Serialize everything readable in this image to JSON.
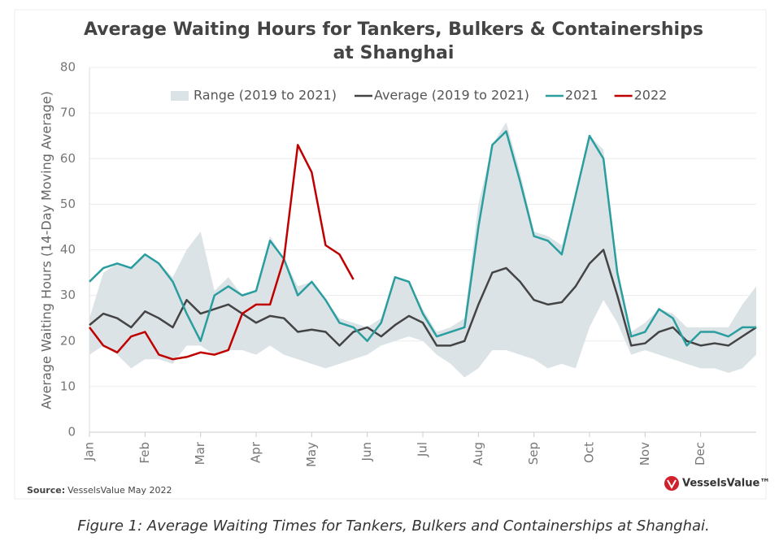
{
  "chart_data": {
    "type": "line",
    "title": [
      "Average Waiting Hours for Tankers, Bulkers & Containerships",
      "at Shanghai"
    ],
    "ylabel": "Average Waiting Hours (14-Day Moving Average)",
    "source_label": "Source:",
    "source": "VesselsValue May 2022",
    "logo": "VesselsValue™",
    "categories": [
      "Jan",
      null,
      null,
      null,
      "Feb",
      null,
      null,
      null,
      "Mar",
      null,
      null,
      null,
      "Apr",
      null,
      null,
      null,
      "May",
      null,
      null,
      null,
      "Jun",
      null,
      null,
      null,
      "Jul",
      null,
      null,
      null,
      "Aug",
      null,
      null,
      null,
      "Sep",
      null,
      null,
      null,
      "Oct",
      null,
      null,
      null,
      "Nov",
      null,
      null,
      null,
      "Dec",
      null,
      null,
      null,
      null
    ],
    "ylim": [
      0,
      80
    ],
    "yticks": [
      0,
      10,
      20,
      30,
      40,
      50,
      60,
      70,
      80
    ],
    "grid": true,
    "range": {
      "name": "Range (2019 to 2021)",
      "color": "#dce3e6",
      "upper": [
        25,
        35,
        37,
        36,
        39,
        37,
        34,
        40,
        44,
        31,
        34,
        30,
        31,
        43,
        38,
        32,
        33,
        29,
        25,
        24,
        23,
        25,
        34,
        33,
        27,
        22,
        23,
        25,
        50,
        63,
        68,
        57,
        44,
        43,
        41,
        52,
        65,
        62,
        36,
        22,
        24,
        27,
        26,
        23,
        23,
        23,
        23,
        28,
        32
      ],
      "lower": [
        17,
        19,
        17,
        14,
        16,
        16,
        15,
        19,
        19,
        17,
        18,
        18,
        17,
        19,
        17,
        16,
        15,
        14,
        15,
        16,
        17,
        19,
        20,
        21,
        20,
        17,
        15,
        12,
        14,
        18,
        18,
        17,
        16,
        14,
        15,
        14,
        23,
        29,
        24,
        17,
        18,
        17,
        16,
        15,
        14,
        14,
        13,
        14,
        17
      ]
    },
    "series": [
      {
        "name": "Average (2019 to 2021)",
        "color": "#444444",
        "values": [
          23.5,
          26,
          25,
          23,
          26.5,
          25,
          23,
          29,
          26,
          27,
          28,
          26,
          24,
          25.5,
          25,
          22,
          22.5,
          22,
          19,
          22,
          23,
          21,
          23.5,
          25.5,
          24,
          19,
          19,
          20,
          28,
          35,
          36,
          33,
          29,
          28,
          28.5,
          32,
          37,
          40,
          30,
          19,
          19.5,
          22,
          23,
          20,
          19,
          19.5,
          19,
          21,
          23
        ]
      },
      {
        "name": "2021",
        "color": "#2a9d9f",
        "values": [
          33,
          36,
          37,
          36,
          39,
          37,
          33,
          26,
          20,
          30,
          32,
          30,
          31,
          42,
          38,
          30,
          33,
          29,
          24,
          23,
          20,
          24,
          34,
          33,
          26,
          21,
          22,
          23,
          45,
          63,
          66,
          55,
          43,
          42,
          39,
          52,
          65,
          60,
          35,
          21,
          22,
          27,
          25,
          19,
          22,
          22,
          21,
          23,
          23
        ]
      },
      {
        "name": "2022",
        "color": "#c00000",
        "values": [
          23,
          19,
          17.5,
          21,
          22,
          17,
          16,
          16.5,
          17.5,
          17,
          18,
          26,
          28,
          28,
          38,
          63,
          57,
          41,
          39,
          33.5,
          null,
          null,
          null,
          null,
          null,
          null,
          null,
          null,
          null,
          null,
          null,
          null,
          null,
          null,
          null,
          null,
          null,
          null,
          null,
          null,
          null,
          null,
          null,
          null,
          null,
          null,
          null,
          null,
          null
        ]
      }
    ]
  },
  "caption": "Figure 1: Average Waiting Times for Tankers, Bulkers and Containerships at Shanghai."
}
